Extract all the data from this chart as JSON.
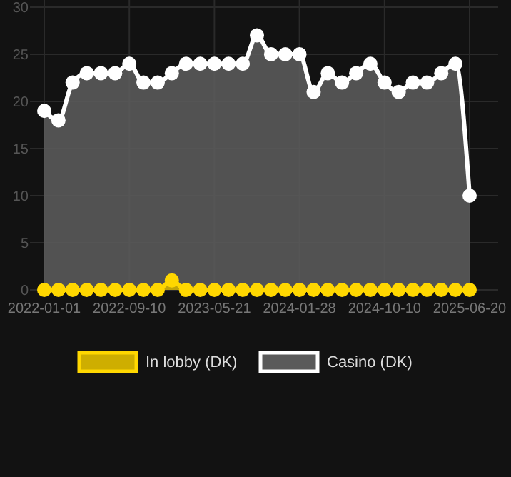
{
  "chart_data": {
    "type": "area",
    "categories": [
      "2022-01-01",
      null,
      null,
      null,
      null,
      null,
      "2022-09-10",
      null,
      null,
      null,
      null,
      null,
      "2023-05-21",
      null,
      null,
      null,
      null,
      null,
      "2024-01-28",
      null,
      null,
      null,
      null,
      null,
      "2024-10-10",
      null,
      null,
      null,
      null,
      null,
      "2025-06-20"
    ],
    "series": [
      {
        "name": "Casino (DK)",
        "color": "#ffffff",
        "values": [
          19,
          18,
          22,
          23,
          23,
          23,
          24,
          22,
          22,
          23,
          24,
          24,
          24,
          24,
          24,
          27,
          25,
          25,
          25,
          21,
          23,
          22,
          23,
          24,
          22,
          21,
          22,
          22,
          23,
          24,
          10
        ]
      },
      {
        "name": "In lobby (DK)",
        "color": "#ffd700",
        "values": [
          0,
          0,
          0,
          0,
          0,
          0,
          0,
          0,
          0,
          1,
          0,
          0,
          0,
          0,
          0,
          0,
          0,
          0,
          0,
          0,
          0,
          0,
          0,
          0,
          0,
          0,
          0,
          0,
          0,
          0,
          0
        ]
      }
    ],
    "ylim": [
      0,
      30
    ],
    "yticks": [
      0,
      5,
      10,
      15,
      20,
      25,
      30
    ],
    "grid": true,
    "legend": "bottom",
    "marker": "circle"
  }
}
